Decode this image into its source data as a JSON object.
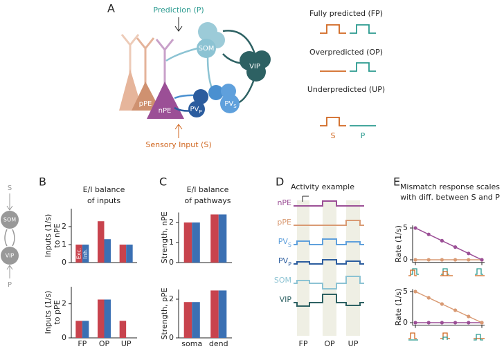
{
  "panels": {
    "a": {
      "label": "A",
      "prediction": "Prediction (P)",
      "sensory": "Sensory Input (S)",
      "cells": {
        "som": "SOM",
        "vip": "VIP",
        "pv_s": "PV",
        "pv_s_sub": "S",
        "pv_p": "PV",
        "pv_p_sub": "P",
        "ppe": "pPE",
        "npe": "nPE"
      },
      "conditions": [
        "Fully predicted (FP)",
        "Overpredicted (OP)",
        "Underpredicted (UP)"
      ],
      "s": "S",
      "p": "P"
    },
    "schematic": {
      "s": "S",
      "som": "SOM",
      "vip": "VIP",
      "p": "P"
    },
    "b": {
      "label": "B",
      "title": [
        "E/I balance",
        "of inputs"
      ]
    },
    "c": {
      "label": "C",
      "title": [
        "E/I balance",
        "of pathways"
      ]
    },
    "d": {
      "label": "D",
      "title": "Activity example",
      "traces": [
        {
          "name": "nPE"
        },
        {
          "name": "pPE"
        },
        {
          "name": "PV",
          "sub": "S"
        },
        {
          "name": "PV",
          "sub": "P"
        },
        {
          "name": "SOM"
        },
        {
          "name": "VIP"
        }
      ],
      "categories": [
        "FP",
        "OP",
        "UP"
      ]
    },
    "e": {
      "label": "E",
      "title": [
        "Mismatch response scales",
        "with diff. between S and P"
      ]
    }
  },
  "chart_data": [
    {
      "type": "bar",
      "ylabel": [
        "Inputs (1/s)",
        "to nPE"
      ],
      "categories": [
        null,
        null,
        null
      ],
      "series": [
        {
          "name": "Exc.",
          "color": "#c8434d",
          "values": [
            1,
            2.3,
            1
          ]
        },
        {
          "name": "Inh.",
          "color": "#3b70b3",
          "values": [
            1,
            1.3,
            1
          ]
        }
      ],
      "ylim": [
        0,
        3
      ],
      "yticks": [
        0,
        1,
        2
      ]
    },
    {
      "type": "bar",
      "ylabel": [
        "Inputs (1/s)",
        "to pPE"
      ],
      "categories": [
        "FP",
        "OP",
        "UP"
      ],
      "series": [
        {
          "color": "#c8434d",
          "values": [
            1,
            2.25,
            1
          ]
        },
        {
          "color": "#3b70b3",
          "values": [
            1,
            2.25,
            0
          ]
        }
      ],
      "ylim": [
        0,
        3
      ],
      "yticks": [
        0,
        2
      ]
    },
    {
      "type": "bar",
      "ylabel": [
        "Strength, nPE"
      ],
      "categories": [
        null,
        null
      ],
      "series": [
        {
          "color": "#c8434d",
          "values": [
            2,
            2.4
          ]
        },
        {
          "color": "#3b70b3",
          "values": [
            2,
            2.4
          ]
        }
      ],
      "ylim": [
        0,
        2.5
      ],
      "yticks": [
        0,
        1,
        2
      ]
    },
    {
      "type": "bar",
      "ylabel": [
        "Strength, pPE"
      ],
      "categories": [
        "soma",
        "dend"
      ],
      "series": [
        {
          "color": "#c8434d",
          "values": [
            1.85,
            2.45
          ]
        },
        {
          "color": "#3b70b3",
          "values": [
            1.85,
            2.45
          ]
        }
      ],
      "ylim": [
        0,
        2.5
      ],
      "yticks": [
        0,
        2
      ]
    },
    {
      "type": "line",
      "ylabel": [
        "Rate (1/s)"
      ],
      "categories": [
        null,
        null,
        null,
        null,
        null,
        null
      ],
      "series": [
        {
          "color": "#d99a73",
          "values": [
            0,
            0,
            0,
            0,
            0,
            0
          ]
        },
        {
          "color": "#9b4f96",
          "values": [
            5,
            4,
            3,
            2,
            1,
            0
          ]
        }
      ],
      "ylim": [
        -0.4,
        5.4
      ],
      "yticks": [
        0,
        5
      ]
    },
    {
      "type": "line",
      "ylabel": [
        "Rate (1/s)"
      ],
      "categories": [
        null,
        null,
        null,
        null,
        null,
        null
      ],
      "series": [
        {
          "color": "#9b4f96",
          "values": [
            0,
            0,
            0,
            0,
            0,
            0
          ]
        },
        {
          "color": "#d99a73",
          "values": [
            5,
            4,
            3,
            2,
            1,
            0
          ]
        }
      ],
      "ylim": [
        -0.4,
        5.4
      ],
      "yticks": [
        0,
        5
      ]
    }
  ]
}
